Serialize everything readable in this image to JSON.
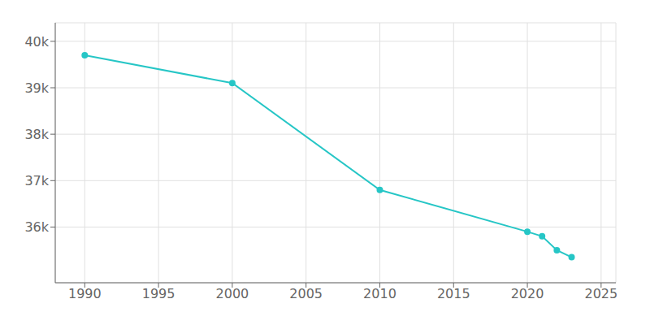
{
  "chart_data": {
    "type": "line",
    "x": [
      1990,
      2000,
      2010,
      2020,
      2021,
      2022,
      2023
    ],
    "values": [
      39700,
      39100,
      36800,
      35900,
      35800,
      35500,
      35350
    ],
    "color": "#26c6c6",
    "marker": "circle",
    "xlim": [
      1988,
      2026
    ],
    "ylim": [
      34800,
      40400
    ],
    "xticks": [
      1990,
      1995,
      2000,
      2005,
      2010,
      2015,
      2020,
      2025
    ],
    "yticks": [
      {
        "value": 36000,
        "label": "36k"
      },
      {
        "value": 37000,
        "label": "37k"
      },
      {
        "value": 38000,
        "label": "38k"
      },
      {
        "value": 39000,
        "label": "39k"
      },
      {
        "value": 40000,
        "label": "40k"
      }
    ],
    "grid": true
  }
}
